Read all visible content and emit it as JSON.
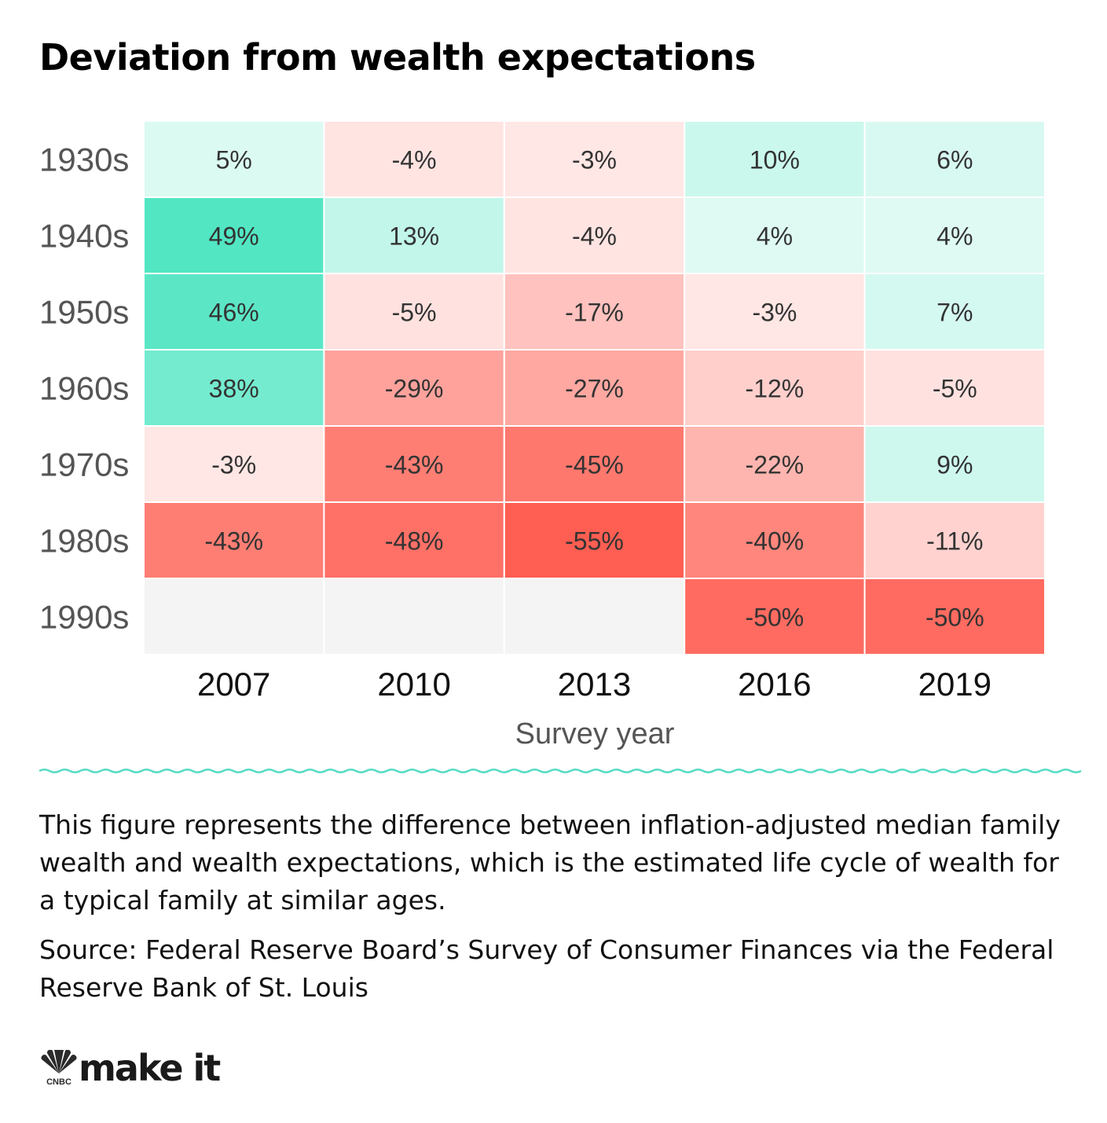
{
  "title": "Deviation from wealth expectations",
  "chart_data": {
    "type": "heatmap",
    "title": "Deviation from wealth expectations",
    "xlabel": "Survey year",
    "ylabel": "",
    "x": [
      "2007",
      "2010",
      "2013",
      "2016",
      "2019"
    ],
    "y": [
      "1930s",
      "1940s",
      "1950s",
      "1960s",
      "1970s",
      "1980s",
      "1990s"
    ],
    "values": [
      [
        5,
        -4,
        -3,
        10,
        6
      ],
      [
        49,
        13,
        -4,
        4,
        4
      ],
      [
        46,
        -5,
        -17,
        -3,
        7
      ],
      [
        38,
        -29,
        -27,
        -12,
        -5
      ],
      [
        -3,
        -43,
        -45,
        -22,
        9
      ],
      [
        -43,
        -48,
        -55,
        -40,
        -11
      ],
      [
        null,
        null,
        null,
        -50,
        -50
      ]
    ],
    "value_format": "{v}%",
    "colors": {
      "positive_max": "#52e6c3",
      "negative_max": "#ff5e52",
      "neutral": "#ffffff",
      "missing": "#f4f4f4",
      "divider": "#58dcc4"
    }
  },
  "caption": "This figure represents the difference between inflation-adjusted median family wealth and wealth expectations, which is the estimated life cycle of wealth for a typical family at similar ages.",
  "source": "Source: Federal Reserve Board’s Survey of Consumer Finances via the Federal Reserve Bank of St. Louis",
  "logo": {
    "brand_icon": "nbc-peacock-icon",
    "brand_small_text": "CNBC",
    "text": "make it"
  }
}
